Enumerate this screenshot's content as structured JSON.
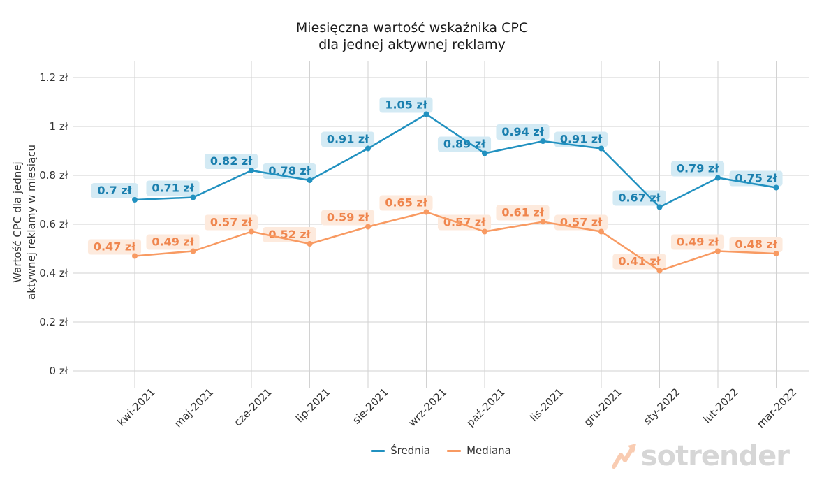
{
  "chart": {
    "title_line1": "Miesięczna wartość wskaźnika CPC",
    "title_line2": "dla jednej aktywnej reklamy",
    "y_axis_title_line1": "Wartość CPC dla jednej",
    "y_axis_title_line2": "aktywnej reklamy w miesiącu"
  },
  "chart_data": {
    "type": "line",
    "title": "Miesięczna wartość wskaźnika CPC dla jednej aktywnej reklamy",
    "xlabel": "",
    "ylabel": "Wartość CPC dla jednej aktywnej reklamy w miesiącu",
    "categories": [
      "kwi-2021",
      "maj-2021",
      "cze-2021",
      "lip-2021",
      "sie-2021",
      "wrz-2021",
      "paź-2021",
      "lis-2021",
      "gru-2021",
      "sty-2022",
      "lut-2022",
      "mar-2022"
    ],
    "series": [
      {
        "name": "Średnia",
        "color": "#2191c0",
        "label_text_color": "#1a7fae",
        "label_bg": "#d3eaf4",
        "values": [
          0.7,
          0.71,
          0.82,
          0.78,
          0.91,
          1.05,
          0.89,
          0.94,
          0.91,
          0.67,
          0.79,
          0.75
        ],
        "labels": [
          "0.7 zł",
          "0.71 zł",
          "0.82 zł",
          "0.78 zł",
          "0.91 zł",
          "1.05 zł",
          "0.89 zł",
          "0.94 zł",
          "0.91 zł",
          "0.67 zł",
          "0.79 zł",
          "0.75 zł"
        ]
      },
      {
        "name": "Mediana",
        "color": "#f89a62",
        "label_text_color": "#ef854d",
        "label_bg": "#fdeadd",
        "values": [
          0.47,
          0.49,
          0.57,
          0.52,
          0.59,
          0.65,
          0.57,
          0.61,
          0.57,
          0.41,
          0.49,
          0.48
        ],
        "labels": [
          "0.47 zł",
          "0.49 zł",
          "0.57 zł",
          "0.52 zł",
          "0.59 zł",
          "0.65 zł",
          "0.57 zł",
          "0.61 zł",
          "0.57 zł",
          "0.41 zł",
          "0.49 zł",
          "0.48 zł"
        ]
      }
    ],
    "y_ticks": {
      "values": [
        0,
        0.2,
        0.4,
        0.6,
        0.8,
        1,
        1.2
      ],
      "labels": [
        "0 zł",
        "0.2 zł",
        "0.4 zł",
        "0.6 zł",
        "0.8 zł",
        "1 zł",
        "1.2 zł"
      ]
    },
    "ylim": [
      0,
      1.27
    ],
    "grid": true,
    "legend_position": "bottom"
  },
  "legend": {
    "items": [
      {
        "label": "Średnia",
        "color": "#2191c0"
      },
      {
        "label": "Mediana",
        "color": "#f89a62"
      }
    ]
  },
  "watermark": {
    "text": "sotrender"
  },
  "colors": {
    "grid": "#d2d2d2",
    "axis_text": "#333333",
    "title_text": "#1a1a1a",
    "watermark_text": "#d6d6d6",
    "watermark_icon": "#f9ccb2"
  }
}
